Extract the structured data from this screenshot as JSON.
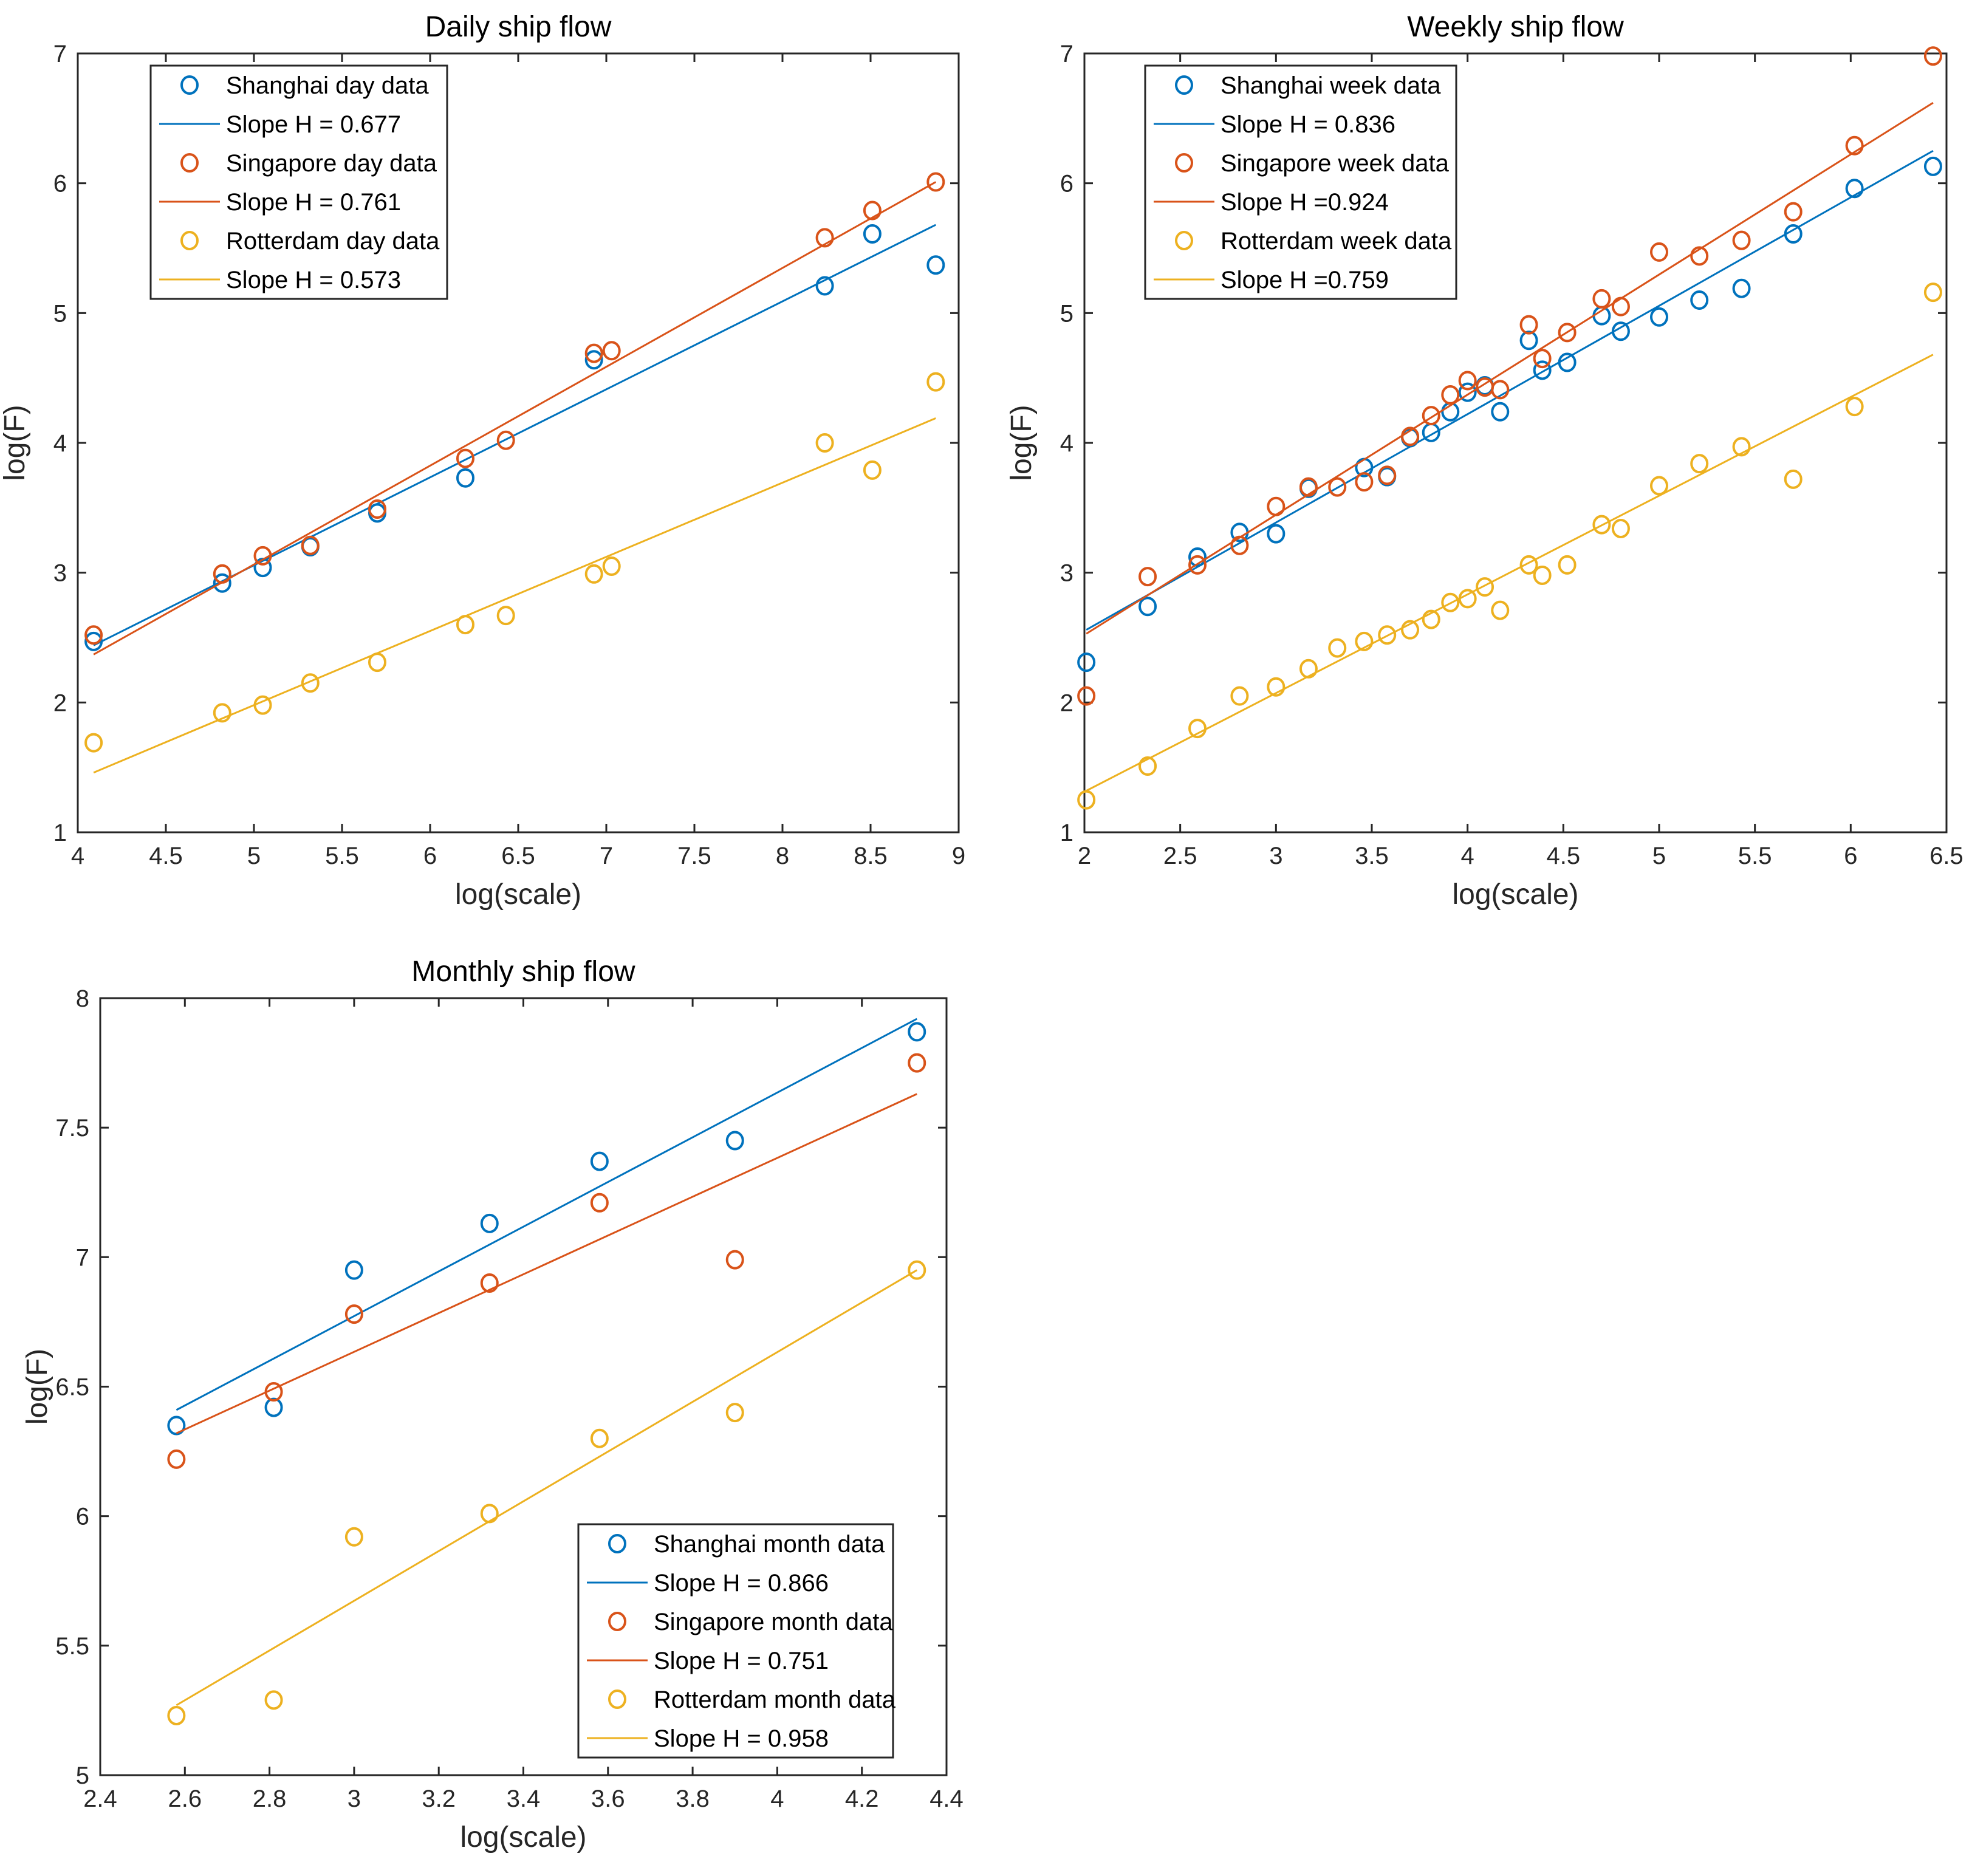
{
  "chart_data": [
    {
      "type": "scatter",
      "title": "Daily ship flow",
      "xlabel": "log(scale)",
      "ylabel": "log(F)",
      "xlim": [
        4,
        9
      ],
      "ylim": [
        1,
        7
      ],
      "xticks": [
        4,
        4.5,
        5,
        5.5,
        6,
        6.5,
        7,
        7.5,
        8,
        8.5,
        9
      ],
      "yticks": [
        1,
        2,
        3,
        4,
        5,
        6,
        7
      ],
      "legend_position": "top-left",
      "series": [
        {
          "name": "Shanghai day data",
          "color": "#0072BD",
          "x": [
            4.09,
            4.82,
            5.05,
            5.32,
            5.7,
            6.2,
            6.93,
            8.24,
            8.51,
            8.87
          ],
          "y": [
            2.47,
            2.92,
            3.04,
            3.2,
            3.46,
            3.73,
            4.64,
            5.21,
            5.61,
            5.37
          ],
          "fit": {
            "label": "Slope H = 0.677",
            "x": [
              4.09,
              8.87
            ],
            "y": [
              2.44,
              5.68
            ]
          }
        },
        {
          "name": "Singapore day data",
          "color": "#D95319",
          "x": [
            4.09,
            4.82,
            5.05,
            5.32,
            5.7,
            6.2,
            6.43,
            6.93,
            7.03,
            8.24,
            8.51,
            8.87
          ],
          "y": [
            2.52,
            2.99,
            3.13,
            3.21,
            3.49,
            3.88,
            4.02,
            4.69,
            4.71,
            5.58,
            5.79,
            6.01
          ],
          "fit": {
            "label": "Slope H = 0.761",
            "x": [
              4.09,
              8.87
            ],
            "y": [
              2.37,
              6.01
            ]
          }
        },
        {
          "name": "Rotterdam day data",
          "color": "#EDB120",
          "x": [
            4.09,
            4.82,
            5.05,
            5.32,
            5.7,
            6.2,
            6.43,
            6.93,
            7.03,
            8.24,
            8.51,
            8.87
          ],
          "y": [
            1.69,
            1.92,
            1.98,
            2.15,
            2.31,
            2.6,
            2.67,
            2.99,
            3.05,
            4.0,
            3.79,
            4.47
          ],
          "fit": {
            "label": "Slope H = 0.573",
            "x": [
              4.09,
              8.87
            ],
            "y": [
              1.46,
              4.19
            ]
          }
        }
      ]
    },
    {
      "type": "scatter",
      "title": "Weekly ship flow",
      "xlabel": "log(scale)",
      "ylabel": "log(F)",
      "xlim": [
        2,
        6.5
      ],
      "ylim": [
        1,
        7
      ],
      "xticks": [
        2,
        2.5,
        3,
        3.5,
        4,
        4.5,
        5,
        5.5,
        6,
        6.5
      ],
      "yticks": [
        1,
        2,
        3,
        4,
        5,
        6,
        7
      ],
      "legend_position": "top-left",
      "series": [
        {
          "name": "Shanghai week data",
          "color": "#0072BD",
          "x": [
            2.01,
            2.33,
            2.59,
            2.81,
            3.0,
            3.17,
            3.46,
            3.58,
            3.7,
            3.81,
            3.91,
            4.0,
            4.09,
            4.17,
            4.32,
            4.39,
            4.52,
            4.7,
            4.8,
            5.0,
            5.21,
            5.43,
            5.7,
            6.02,
            6.43
          ],
          "y": [
            2.31,
            2.74,
            3.12,
            3.31,
            3.3,
            3.65,
            3.81,
            3.74,
            4.04,
            4.08,
            4.24,
            4.39,
            4.44,
            4.24,
            4.79,
            4.56,
            4.62,
            4.98,
            4.86,
            4.97,
            5.1,
            5.19,
            5.61,
            5.96,
            6.13
          ],
          "fit": {
            "label": "Slope H = 0.836",
            "x": [
              2.01,
              6.43
            ],
            "y": [
              2.56,
              6.25
            ]
          }
        },
        {
          "name": "Singapore week data",
          "color": "#D95319",
          "x": [
            2.01,
            2.33,
            2.59,
            2.81,
            3.0,
            3.17,
            3.32,
            3.46,
            3.58,
            3.7,
            3.81,
            3.91,
            4.0,
            4.09,
            4.17,
            4.32,
            4.39,
            4.52,
            4.7,
            4.8,
            5.0,
            5.21,
            5.43,
            5.7,
            6.02,
            6.43
          ],
          "y": [
            2.05,
            2.97,
            3.06,
            3.21,
            3.51,
            3.66,
            3.66,
            3.7,
            3.75,
            4.05,
            4.21,
            4.37,
            4.48,
            4.43,
            4.41,
            4.91,
            4.65,
            4.85,
            5.11,
            5.05,
            5.47,
            5.44,
            5.56,
            5.78,
            6.29,
            6.98
          ],
          "fit": {
            "label": "Slope H =0.924",
            "x": [
              2.01,
              6.43
            ],
            "y": [
              2.53,
              6.62
            ]
          }
        },
        {
          "name": "Rotterdam week data",
          "color": "#EDB120",
          "x": [
            2.01,
            2.33,
            2.59,
            2.81,
            3.0,
            3.17,
            3.32,
            3.46,
            3.58,
            3.7,
            3.81,
            3.91,
            4.0,
            4.09,
            4.17,
            4.32,
            4.39,
            4.52,
            4.7,
            4.8,
            5.0,
            5.21,
            5.43,
            5.7,
            6.02,
            6.43
          ],
          "y": [
            1.25,
            1.51,
            1.8,
            2.05,
            2.12,
            2.26,
            2.42,
            2.47,
            2.52,
            2.56,
            2.64,
            2.77,
            2.8,
            2.89,
            2.71,
            3.06,
            2.98,
            3.06,
            3.37,
            3.34,
            3.67,
            3.84,
            3.97,
            3.72,
            4.28,
            5.16
          ],
          "fit": {
            "label": "Slope H =0.759",
            "x": [
              2.01,
              6.43
            ],
            "y": [
              1.32,
              4.68
            ]
          }
        }
      ]
    },
    {
      "type": "scatter",
      "title": "Monthly ship flow",
      "xlabel": "log(scale)",
      "ylabel": "log(F)",
      "xlim": [
        2.4,
        4.4
      ],
      "ylim": [
        5,
        8
      ],
      "xticks": [
        2.4,
        2.6,
        2.8,
        3,
        3.2,
        3.4,
        3.6,
        3.8,
        4,
        4.2,
        4.4
      ],
      "yticks": [
        5,
        5.5,
        6,
        6.5,
        7,
        7.5,
        8
      ],
      "legend_position": "bottom-right",
      "series": [
        {
          "name": "Shanghai month data",
          "color": "#0072BD",
          "x": [
            2.58,
            2.81,
            3.0,
            3.32,
            3.58,
            3.9,
            4.33
          ],
          "y": [
            6.35,
            6.42,
            6.95,
            7.13,
            7.37,
            7.45,
            7.87
          ],
          "fit": {
            "label": "Slope H = 0.866",
            "x": [
              2.58,
              4.33
            ],
            "y": [
              6.41,
              7.92
            ]
          }
        },
        {
          "name": "Singapore month data",
          "color": "#D95319",
          "x": [
            2.58,
            2.81,
            3.0,
            3.32,
            3.58,
            3.9,
            4.33
          ],
          "y": [
            6.22,
            6.48,
            6.78,
            6.9,
            7.21,
            6.99,
            7.75
          ],
          "fit": {
            "label": "Slope H = 0.751",
            "x": [
              2.58,
              4.33
            ],
            "y": [
              6.32,
              7.63
            ]
          }
        },
        {
          "name": "Rotterdam month data",
          "color": "#EDB120",
          "x": [
            2.58,
            2.81,
            3.0,
            3.32,
            3.58,
            3.9,
            4.33
          ],
          "y": [
            5.23,
            5.29,
            5.92,
            6.01,
            6.3,
            6.4,
            6.95
          ],
          "fit": {
            "label": "Slope H = 0.958",
            "x": [
              2.58,
              4.33
            ],
            "y": [
              5.27,
              6.95
            ]
          }
        }
      ]
    }
  ]
}
